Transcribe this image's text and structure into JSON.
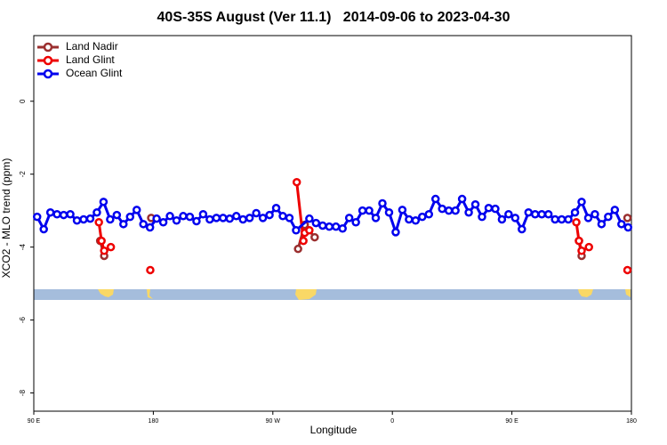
{
  "chart_data": {
    "type": "line",
    "title": "40S-35S August (Ver 11.1)   2014-09-06 to 2023-04-30",
    "x_label": "Longitude",
    "y_label": "XCO2 - MLO trend (ppm)",
    "xlim": [
      90,
      540
    ],
    "ylim": [
      -8.5,
      1.8
    ],
    "xticks": [
      {
        "value": 90,
        "label": "90 E"
      },
      {
        "value": 180,
        "label": "180"
      },
      {
        "value": 270,
        "label": "90 W"
      },
      {
        "value": 360,
        "label": "0"
      },
      {
        "value": 450,
        "label": "90 E"
      },
      {
        "value": 540,
        "label": "180"
      }
    ],
    "yticks": [
      -8,
      -6,
      -4,
      -2,
      0
    ],
    "legend": "top-left",
    "series": [
      {
        "name": "Land Nadir",
        "color": "#9b2f2f",
        "x": [
          140,
          143,
          null,
          178.4,
          null,
          289,
          294,
          301.5,
          null,
          500.5,
          502.5,
          null,
          537
        ],
        "values": [
          -3.83,
          -4.24,
          null,
          -3.2,
          null,
          -4.05,
          -3.39,
          -3.73,
          null,
          -3.83,
          -4.24,
          null,
          -3.2
        ]
      },
      {
        "name": "Land Glint",
        "color": "#ee0000",
        "x": [
          139,
          141,
          143,
          148,
          null,
          177.7,
          null,
          288,
          293,
          294,
          297.5,
          null,
          498.5,
          500.5,
          502.5,
          508,
          null,
          537
        ],
        "values": [
          -3.32,
          -3.83,
          -4.1,
          -4.0,
          null,
          -4.63,
          null,
          -2.22,
          -3.83,
          -3.61,
          -3.54,
          null,
          -3.32,
          -3.83,
          -4.1,
          -4.0,
          null,
          -4.63
        ]
      },
      {
        "name": "Ocean Glint",
        "color": "#0000ee",
        "x": [
          92.5,
          97.5,
          102.5,
          107.5,
          112.5,
          117.5,
          122.5,
          127.5,
          132.5,
          137.5,
          142.5,
          147.5,
          152.5,
          157.5,
          162.5,
          167.5,
          172.5,
          177.5,
          182.5,
          187.5,
          192.5,
          197.5,
          202.5,
          207.5,
          212.5,
          217.5,
          222.5,
          227.5,
          232.5,
          237.5,
          242.5,
          247.5,
          252.5,
          257.5,
          262.5,
          267.5,
          272.5,
          277.5,
          282.5,
          287.5,
          297.5,
          302.5,
          307.5,
          312.5,
          317.5,
          322.5,
          327.5,
          332.5,
          337.5,
          342.5,
          347.5,
          352.5,
          357.5,
          362.5,
          367.5,
          372.5,
          377.5,
          382.5,
          387.5,
          392.5,
          397.5,
          402.5,
          407.5,
          412.5,
          417.5,
          422.5,
          427.5,
          432.5,
          437.5,
          442.5,
          447.5,
          452.5,
          457.5,
          462.5,
          467.5,
          472.5,
          477.5,
          482.5,
          487.5,
          492.5,
          497.5,
          502.5,
          507.5,
          512.5,
          517.5,
          522.5,
          527.5,
          532.5,
          537.5
        ],
        "values": [
          -3.17,
          -3.51,
          -3.05,
          -3.1,
          -3.12,
          -3.1,
          -3.27,
          -3.24,
          -3.22,
          -3.05,
          -2.76,
          -3.24,
          -3.12,
          -3.37,
          -3.17,
          -2.98,
          -3.37,
          -3.46,
          -3.22,
          -3.32,
          -3.15,
          -3.27,
          -3.15,
          -3.17,
          -3.29,
          -3.1,
          -3.24,
          -3.2,
          -3.2,
          -3.22,
          -3.15,
          -3.24,
          -3.2,
          -3.07,
          -3.2,
          -3.12,
          -2.93,
          -3.15,
          -3.2,
          -3.54,
          -3.22,
          -3.34,
          -3.41,
          -3.44,
          -3.44,
          -3.49,
          -3.2,
          -3.32,
          -3.0,
          -3.0,
          -3.2,
          -2.8,
          -3.05,
          -3.59,
          -2.98,
          -3.24,
          -3.27,
          -3.17,
          -3.1,
          -2.68,
          -2.95,
          -3.0,
          -3.0,
          -2.68,
          -3.05,
          -2.83,
          -3.17,
          -2.93,
          -2.95,
          -3.24,
          -3.1,
          -3.2,
          -3.51,
          -3.05,
          -3.1,
          -3.1,
          -3.1,
          -3.24,
          -3.24,
          -3.24,
          -3.05,
          -2.76,
          -3.2,
          -3.1,
          -3.37,
          -3.17,
          -2.98,
          -3.37,
          -3.46
        ]
      }
    ]
  }
}
